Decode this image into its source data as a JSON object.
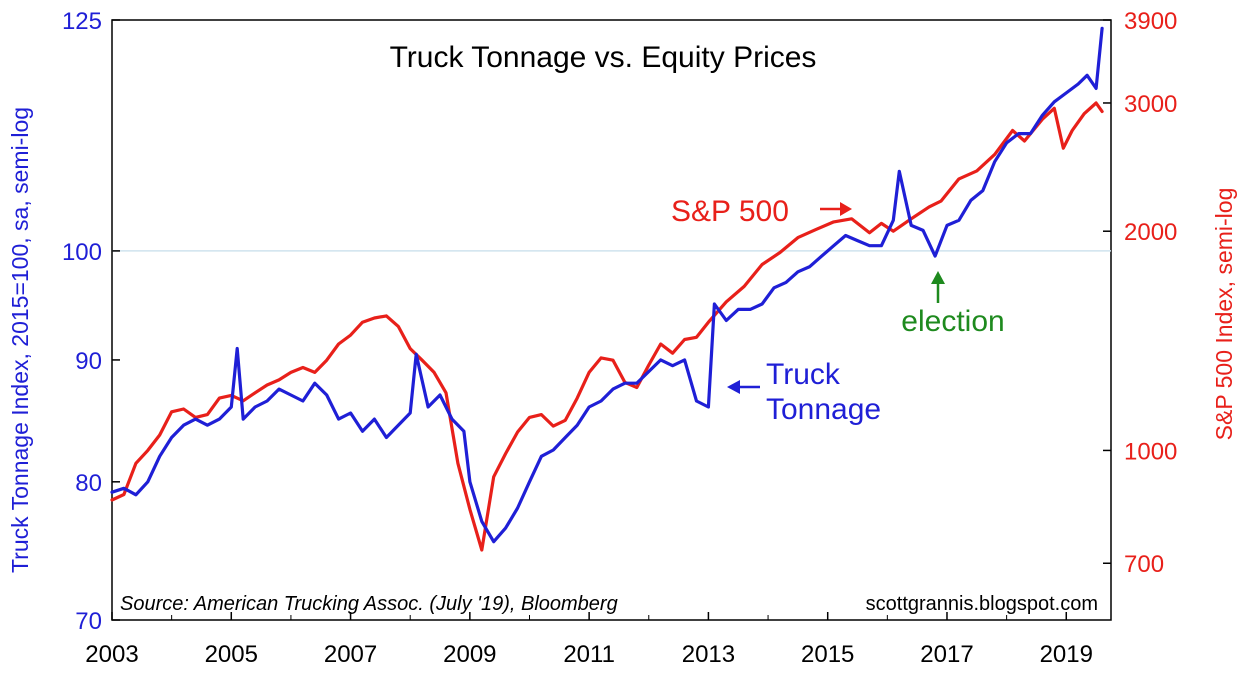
{
  "chart_data": {
    "type": "line",
    "title": "Truck Tonnage vs. Equity Prices",
    "ylabel": "Truck Tonnage Index, 2015=100, sa, semi-log",
    "ylabel_right": "S&P 500 Index, semi-log",
    "source": "Source: American Trucking Assoc. (July '19), Bloomberg",
    "credit": "scottgrannis.blogspot.com",
    "xlim": [
      2003.0,
      2019.75
    ],
    "xticks": [
      2003,
      2005,
      2007,
      2009,
      2011,
      2013,
      2015,
      2017,
      2019
    ],
    "xtick_labels": [
      "2003",
      "2005",
      "2007",
      "2009",
      "2011",
      "2013",
      "2015",
      "2017",
      "2019"
    ],
    "ylim_left": [
      70,
      125
    ],
    "yticks_left": [
      70,
      80,
      90,
      100,
      125
    ],
    "ytick_labels_left": [
      "70",
      "80",
      "90",
      "100",
      "125"
    ],
    "ylim_right": [
      585,
      3900
    ],
    "yticks_right": [
      700,
      1000,
      2000,
      3000,
      3900
    ],
    "ytick_labels_right": [
      "700",
      "1000",
      "2000",
      "3000",
      "3900"
    ],
    "scale": "log",
    "reference_line": {
      "axis": "left",
      "y": 100,
      "color": "#cfe3ee"
    },
    "colors": {
      "truck": "#1f1fd6",
      "sp500": "#e8201a",
      "election": "#1e8a1e"
    },
    "annotations": {
      "sp500": "S&P 500",
      "truck_line1": "Truck",
      "truck_line2": "Tonnage",
      "election": "election"
    },
    "series": [
      {
        "name": "Truck Tonnage",
        "axis": "left",
        "x": [
          2003.0,
          2003.2,
          2003.4,
          2003.6,
          2003.8,
          2004.0,
          2004.2,
          2004.4,
          2004.6,
          2004.8,
          2005.0,
          2005.1,
          2005.2,
          2005.4,
          2005.6,
          2005.8,
          2006.0,
          2006.2,
          2006.4,
          2006.6,
          2006.8,
          2007.0,
          2007.2,
          2007.4,
          2007.6,
          2007.8,
          2008.0,
          2008.1,
          2008.3,
          2008.5,
          2008.7,
          2008.9,
          2009.0,
          2009.2,
          2009.4,
          2009.6,
          2009.8,
          2010.0,
          2010.2,
          2010.4,
          2010.6,
          2010.8,
          2011.0,
          2011.2,
          2011.4,
          2011.6,
          2011.8,
          2012.0,
          2012.2,
          2012.4,
          2012.6,
          2012.8,
          2013.0,
          2013.1,
          2013.3,
          2013.5,
          2013.7,
          2013.9,
          2014.1,
          2014.3,
          2014.5,
          2014.7,
          2014.9,
          2015.1,
          2015.3,
          2015.5,
          2015.7,
          2015.9,
          2016.1,
          2016.2,
          2016.4,
          2016.6,
          2016.8,
          2017.0,
          2017.2,
          2017.4,
          2017.6,
          2017.8,
          2018.0,
          2018.2,
          2018.4,
          2018.6,
          2018.8,
          2019.0,
          2019.2,
          2019.35,
          2019.5,
          2019.6
        ],
        "values": [
          79.2,
          79.5,
          79.0,
          80.0,
          82.0,
          83.5,
          84.5,
          85.0,
          84.5,
          85.0,
          86.0,
          91.0,
          85.0,
          86.0,
          86.5,
          87.5,
          87.0,
          86.5,
          88.0,
          87.0,
          85.0,
          85.5,
          84.0,
          85.0,
          83.5,
          84.5,
          85.5,
          90.5,
          86.0,
          87.0,
          85.0,
          84.0,
          80.0,
          77.0,
          75.5,
          76.5,
          78.0,
          80.0,
          82.0,
          82.5,
          83.5,
          84.5,
          86.0,
          86.5,
          87.5,
          88.0,
          88.0,
          89.0,
          90.0,
          89.5,
          90.0,
          86.5,
          86.0,
          95.0,
          93.5,
          94.5,
          94.5,
          95.0,
          96.5,
          97.0,
          98.0,
          98.5,
          99.5,
          100.5,
          101.5,
          101.0,
          100.5,
          100.5,
          103.0,
          108.0,
          102.5,
          102.0,
          99.5,
          102.5,
          103.0,
          105.0,
          106.0,
          109.0,
          111.0,
          112.0,
          112.0,
          114.0,
          115.5,
          116.5,
          117.5,
          118.5,
          117.0,
          124.0
        ]
      },
      {
        "name": "S&P 500",
        "axis": "right",
        "x": [
          2003.0,
          2003.2,
          2003.4,
          2003.6,
          2003.8,
          2004.0,
          2004.2,
          2004.4,
          2004.6,
          2004.8,
          2005.0,
          2005.2,
          2005.4,
          2005.6,
          2005.8,
          2006.0,
          2006.2,
          2006.4,
          2006.6,
          2006.8,
          2007.0,
          2007.2,
          2007.4,
          2007.6,
          2007.8,
          2008.0,
          2008.2,
          2008.4,
          2008.6,
          2008.8,
          2009.0,
          2009.2,
          2009.4,
          2009.6,
          2009.8,
          2010.0,
          2010.2,
          2010.4,
          2010.6,
          2010.8,
          2011.0,
          2011.2,
          2011.4,
          2011.6,
          2011.8,
          2012.0,
          2012.2,
          2012.4,
          2012.6,
          2012.8,
          2013.0,
          2013.3,
          2013.6,
          2013.9,
          2014.2,
          2014.5,
          2014.8,
          2015.1,
          2015.4,
          2015.7,
          2015.9,
          2016.1,
          2016.4,
          2016.7,
          2016.9,
          2017.2,
          2017.5,
          2017.8,
          2018.1,
          2018.3,
          2018.6,
          2018.8,
          2018.95,
          2019.1,
          2019.3,
          2019.5,
          2019.6
        ],
        "values": [
          855,
          870,
          960,
          1000,
          1050,
          1130,
          1140,
          1110,
          1120,
          1180,
          1190,
          1170,
          1200,
          1230,
          1250,
          1280,
          1300,
          1280,
          1330,
          1400,
          1440,
          1500,
          1520,
          1530,
          1480,
          1380,
          1330,
          1280,
          1200,
          960,
          830,
          730,
          920,
          990,
          1060,
          1110,
          1120,
          1080,
          1100,
          1180,
          1280,
          1340,
          1330,
          1240,
          1220,
          1310,
          1400,
          1360,
          1420,
          1430,
          1500,
          1600,
          1680,
          1800,
          1870,
          1960,
          2010,
          2060,
          2080,
          1990,
          2050,
          2000,
          2080,
          2160,
          2200,
          2360,
          2420,
          2550,
          2750,
          2660,
          2850,
          2950,
          2600,
          2750,
          2900,
          3000,
          2920
        ]
      }
    ]
  }
}
